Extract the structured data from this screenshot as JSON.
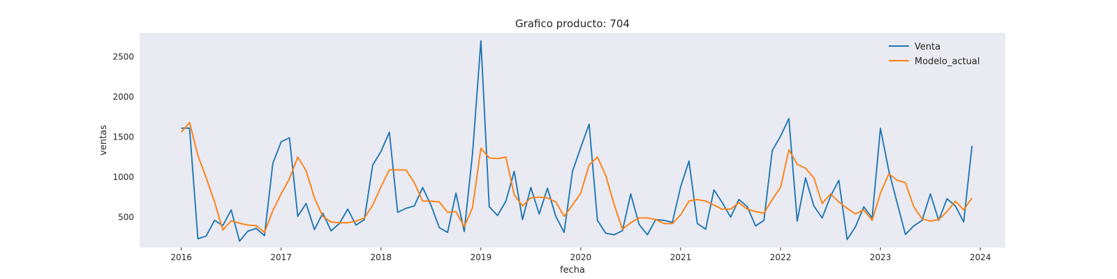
{
  "chart_data": {
    "type": "line",
    "title": "Grafico producto: 704",
    "xlabel": "fecha",
    "ylabel": "ventas",
    "x_ticks": [
      "2016",
      "2017",
      "2018",
      "2019",
      "2020",
      "2021",
      "2022",
      "2023",
      "2024"
    ],
    "y_ticks": [
      500,
      1000,
      1500,
      2000,
      2500
    ],
    "xlim": [
      "2015-08",
      "2024-04"
    ],
    "ylim": [
      120,
      2800
    ],
    "grid": false,
    "background": "#eaeaf2",
    "legend_position": "top-right",
    "x": [
      "2016-01",
      "2016-02",
      "2016-03",
      "2016-04",
      "2016-05",
      "2016-06",
      "2016-07",
      "2016-08",
      "2016-09",
      "2016-10",
      "2016-11",
      "2016-12",
      "2017-01",
      "2017-02",
      "2017-03",
      "2017-04",
      "2017-05",
      "2017-06",
      "2017-07",
      "2017-08",
      "2017-09",
      "2017-10",
      "2017-11",
      "2017-12",
      "2018-01",
      "2018-02",
      "2018-03",
      "2018-04",
      "2018-05",
      "2018-06",
      "2018-07",
      "2018-08",
      "2018-09",
      "2018-10",
      "2018-11",
      "2018-12",
      "2019-01",
      "2019-02",
      "2019-03",
      "2019-04",
      "2019-05",
      "2019-06",
      "2019-07",
      "2019-08",
      "2019-09",
      "2019-10",
      "2019-11",
      "2019-12",
      "2020-01",
      "2020-02",
      "2020-03",
      "2020-04",
      "2020-05",
      "2020-06",
      "2020-07",
      "2020-08",
      "2020-09",
      "2020-10",
      "2020-11",
      "2020-12",
      "2021-01",
      "2021-02",
      "2021-03",
      "2021-04",
      "2021-05",
      "2021-06",
      "2021-07",
      "2021-08",
      "2021-09",
      "2021-10",
      "2021-11",
      "2021-12",
      "2022-01",
      "2022-02",
      "2022-03",
      "2022-04",
      "2022-05",
      "2022-06",
      "2022-07",
      "2022-08",
      "2022-09",
      "2022-10",
      "2022-11",
      "2022-12",
      "2023-01",
      "2023-02",
      "2023-03",
      "2023-04",
      "2023-05",
      "2023-06",
      "2023-07",
      "2023-08",
      "2023-09",
      "2023-10",
      "2023-11",
      "2023-12"
    ],
    "series": [
      {
        "name": "Venta",
        "color": "#1f77b4",
        "values": [
          1610,
          1610,
          230,
          265,
          460,
          395,
          590,
          200,
          325,
          360,
          270,
          1170,
          1440,
          1490,
          510,
          670,
          345,
          550,
          330,
          420,
          600,
          400,
          470,
          1150,
          1320,
          1560,
          560,
          610,
          640,
          870,
          650,
          370,
          310,
          800,
          320,
          1300,
          2700,
          630,
          520,
          700,
          1070,
          470,
          870,
          540,
          860,
          510,
          310,
          1070,
          1370,
          1660,
          460,
          300,
          280,
          330,
          790,
          410,
          280,
          470,
          460,
          435,
          880,
          1200,
          420,
          350,
          840,
          680,
          500,
          720,
          630,
          390,
          460,
          1330,
          1510,
          1730,
          450,
          990,
          640,
          490,
          760,
          960,
          220,
          380,
          630,
          490,
          1610,
          1080,
          680,
          285,
          390,
          460,
          790,
          460,
          730,
          640,
          440,
          1390
        ]
      },
      {
        "name": "Modelo_actual",
        "color": "#ff7f0e",
        "values": [
          1560,
          1680,
          1270,
          990,
          690,
          340,
          455,
          425,
          400,
          395,
          310,
          580,
          790,
          980,
          1250,
          1080,
          740,
          510,
          440,
          430,
          430,
          450,
          490,
          650,
          880,
          1090,
          1090,
          1090,
          930,
          700,
          700,
          690,
          560,
          570,
          380,
          620,
          1360,
          1240,
          1230,
          1250,
          780,
          640,
          740,
          750,
          740,
          690,
          510,
          650,
          800,
          1150,
          1250,
          1020,
          660,
          350,
          430,
          490,
          490,
          470,
          420,
          420,
          530,
          700,
          720,
          700,
          650,
          600,
          600,
          680,
          600,
          570,
          550,
          720,
          870,
          1340,
          1160,
          1110,
          990,
          670,
          790,
          690,
          610,
          540,
          590,
          460,
          800,
          1040,
          960,
          930,
          630,
          480,
          450,
          470,
          570,
          700,
          590,
          740
        ]
      }
    ]
  }
}
